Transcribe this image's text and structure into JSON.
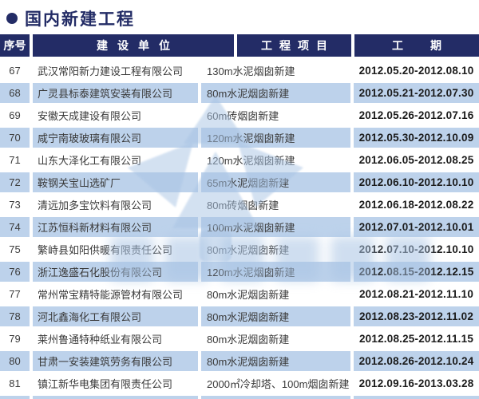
{
  "title": {
    "text": "国内新建工程"
  },
  "table": {
    "headers": {
      "no": "序号",
      "company": "建设单位",
      "project": "工程项目",
      "period": "工期"
    },
    "rows": [
      {
        "no": "67",
        "company": "武汉常阳新力建设工程有限公司",
        "project": "130m水泥烟囱新建",
        "period": "2012.05.20-2012.08.10"
      },
      {
        "no": "68",
        "company": "广灵县标泰建筑安装有限公司",
        "project": "80m水泥烟囱新建",
        "period": "2012.05.21-2012.07.30"
      },
      {
        "no": "69",
        "company": "安徽天成建设有限公司",
        "project": "60m砖烟囱新建",
        "period": "2012.05.26-2012.07.16"
      },
      {
        "no": "70",
        "company": "咸宁南玻玻璃有限公司",
        "project": "120m水泥烟囱新建",
        "period": "2012.05.30-2012.10.09"
      },
      {
        "no": "71",
        "company": "山东大泽化工有限公司",
        "project": "120m水泥烟囱新建",
        "period": "2012.06.05-2012.08.25"
      },
      {
        "no": "72",
        "company": "鞍钢关宝山选矿厂",
        "project": "65m水泥烟囱新建",
        "period": "2012.06.10-2012.10.10"
      },
      {
        "no": "73",
        "company": "清远加多宝饮料有限公司",
        "project": "80m砖烟囱新建",
        "period": "2012.06.18-2012.08.22"
      },
      {
        "no": "74",
        "company": "江苏恒科新材料有限公司",
        "project": "100m水泥烟囱新建",
        "period": "2012.07.01-2012.10.01"
      },
      {
        "no": "75",
        "company": "繁峙县如阳供暖有限责任公司",
        "project": "80m水泥烟囱新建",
        "period": "2012.07.10-2012.10.10"
      },
      {
        "no": "76",
        "company": "浙江逸盛石化股份有限公司",
        "project": "120m水泥烟囱新建",
        "period": "2012.08.15-2012.12.15"
      },
      {
        "no": "77",
        "company": "常州常宝精特能源管材有限公司",
        "project": "80m水泥烟囱新建",
        "period": "2012.08.21-2012.11.10"
      },
      {
        "no": "78",
        "company": "河北鑫海化工有限公司",
        "project": "80m水泥烟囱新建",
        "period": "2012.08.23-2012.11.02"
      },
      {
        "no": "79",
        "company": "莱州鲁通特种纸业有限公司",
        "project": "80m水泥烟囱新建",
        "period": "2012.08.25-2012.11.15"
      },
      {
        "no": "80",
        "company": "甘肃一安装建筑劳务有限公司",
        "project": "80m水泥烟囱新建",
        "period": "2012.08.26-2012.10.24"
      },
      {
        "no": "81",
        "company": "镇江新华电集团有限责任公司",
        "project": "2000㎡冷却塔、100m烟囱新建",
        "period": "2012.09.16-2013.03.28"
      }
    ]
  },
  "colors": {
    "navy": "#232c66",
    "stripe_blue": "#bdd2eb",
    "body_text": "#3a3a3a",
    "date_text": "#1a1a1a",
    "watermark_blue": "#a9c4e4"
  }
}
